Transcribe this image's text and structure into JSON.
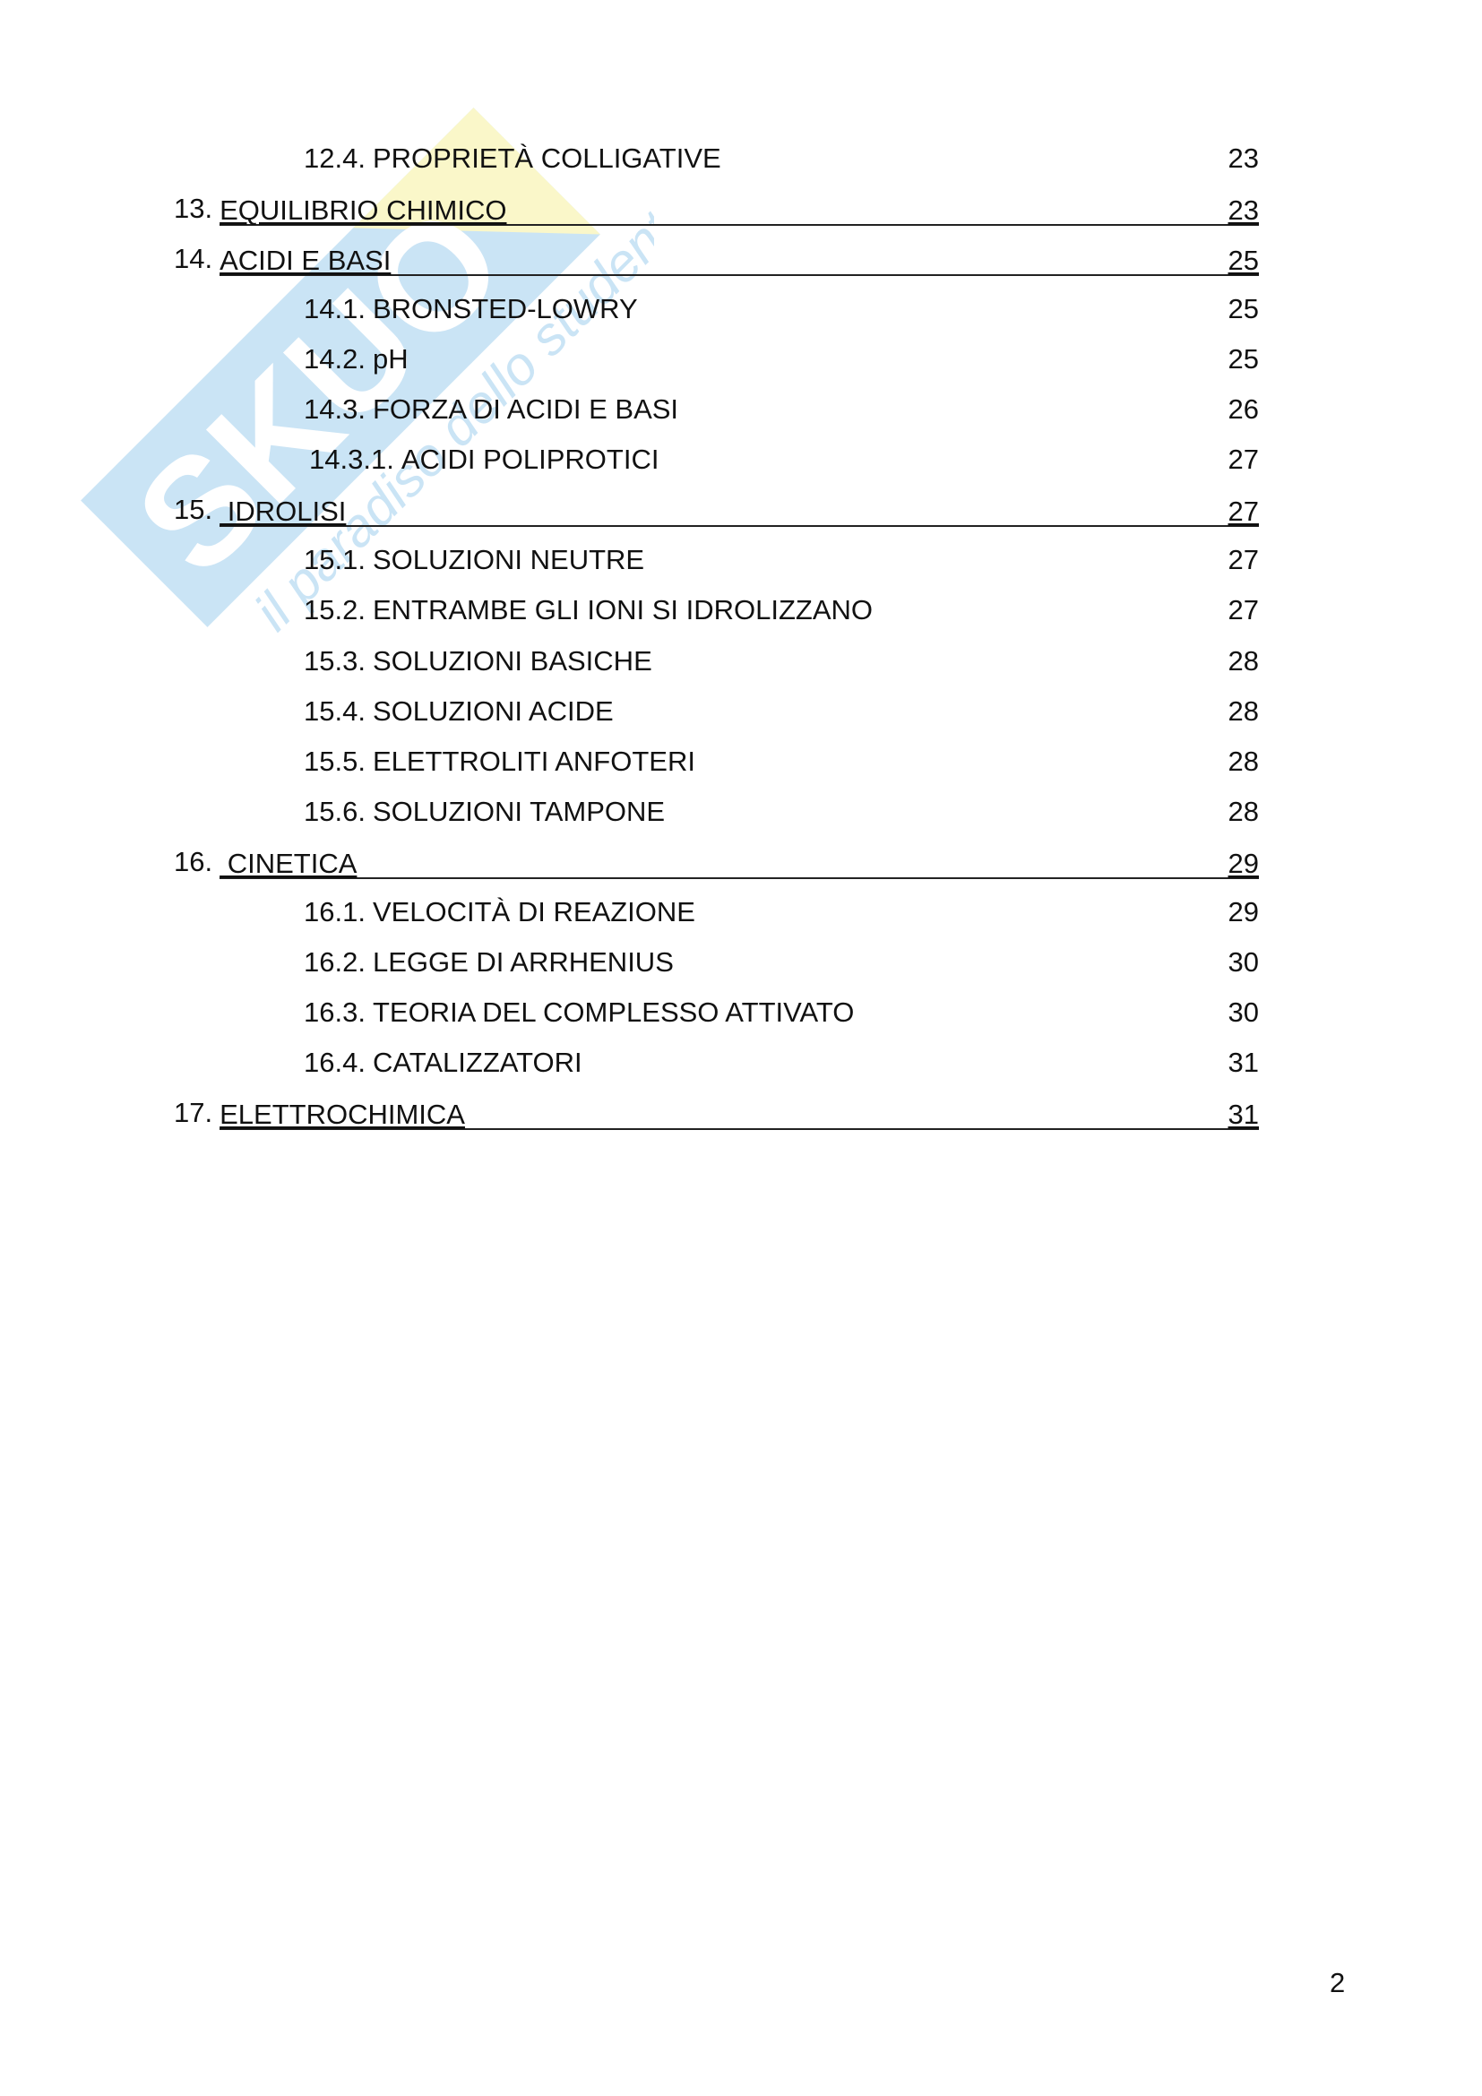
{
  "watermark": {
    "brand": "SKUOLA.NET",
    "tagline": "il paradiso dello studente",
    "colors": {
      "blue": "#5aa9de",
      "yellow": "#f5ef8a"
    }
  },
  "toc": [
    {
      "level": 2,
      "number": "12.4.",
      "title": "PROPRIETÀ COLLIGATIVE",
      "page": "23"
    },
    {
      "level": 1,
      "number": "13.",
      "title": "EQUILIBRIO CHIMICO",
      "page": "23"
    },
    {
      "level": 1,
      "number": "14.",
      "title": "ACIDI E BASI",
      "page": "25"
    },
    {
      "level": 2,
      "number": "14.1.",
      "title": "BRONSTED-LOWRY",
      "page": "25"
    },
    {
      "level": 2,
      "number": "14.2.",
      "title": "pH",
      "page": "25"
    },
    {
      "level": 2,
      "number": "14.3.",
      "title": "FORZA DI ACIDI E BASI",
      "page": "26"
    },
    {
      "level": 3,
      "number": "14.3.1.",
      "title": "ACIDI POLIPROTICI",
      "page": "27"
    },
    {
      "level": 1,
      "number": "15.",
      "title": " IDROLISI",
      "page": "27"
    },
    {
      "level": 2,
      "number": "15.1.",
      "title": "SOLUZIONI NEUTRE",
      "page": "27"
    },
    {
      "level": 2,
      "number": "15.2.",
      "title": "ENTRAMBE GLI IONI SI IDROLIZZANO",
      "page": "27"
    },
    {
      "level": 2,
      "number": "15.3.",
      "title": "SOLUZIONI BASICHE",
      "page": "28"
    },
    {
      "level": 2,
      "number": "15.4.",
      "title": "SOLUZIONI ACIDE",
      "page": "28"
    },
    {
      "level": 2,
      "number": "15.5.",
      "title": "ELETTROLITI ANFOTERI",
      "page": "28"
    },
    {
      "level": 2,
      "number": "15.6.",
      "title": "SOLUZIONI TAMPONE",
      "page": "28"
    },
    {
      "level": 1,
      "number": "16.",
      "title": " CINETICA",
      "page": "29"
    },
    {
      "level": 2,
      "number": "16.1.",
      "title": "VELOCITÀ DI REAZIONE",
      "page": "29"
    },
    {
      "level": 2,
      "number": "16.2.",
      "title": "LEGGE DI ARRHENIUS",
      "page": "30"
    },
    {
      "level": 2,
      "number": "16.3.",
      "title": "TEORIA DEL COMPLESSO ATTIVATO",
      "page": "30"
    },
    {
      "level": 2,
      "number": "16.4.",
      "title": "CATALIZZATORI",
      "page": "31"
    },
    {
      "level": 1,
      "number": "17.",
      "title": "ELETTROCHIMICA",
      "page": "31"
    }
  ],
  "page_number": "2"
}
